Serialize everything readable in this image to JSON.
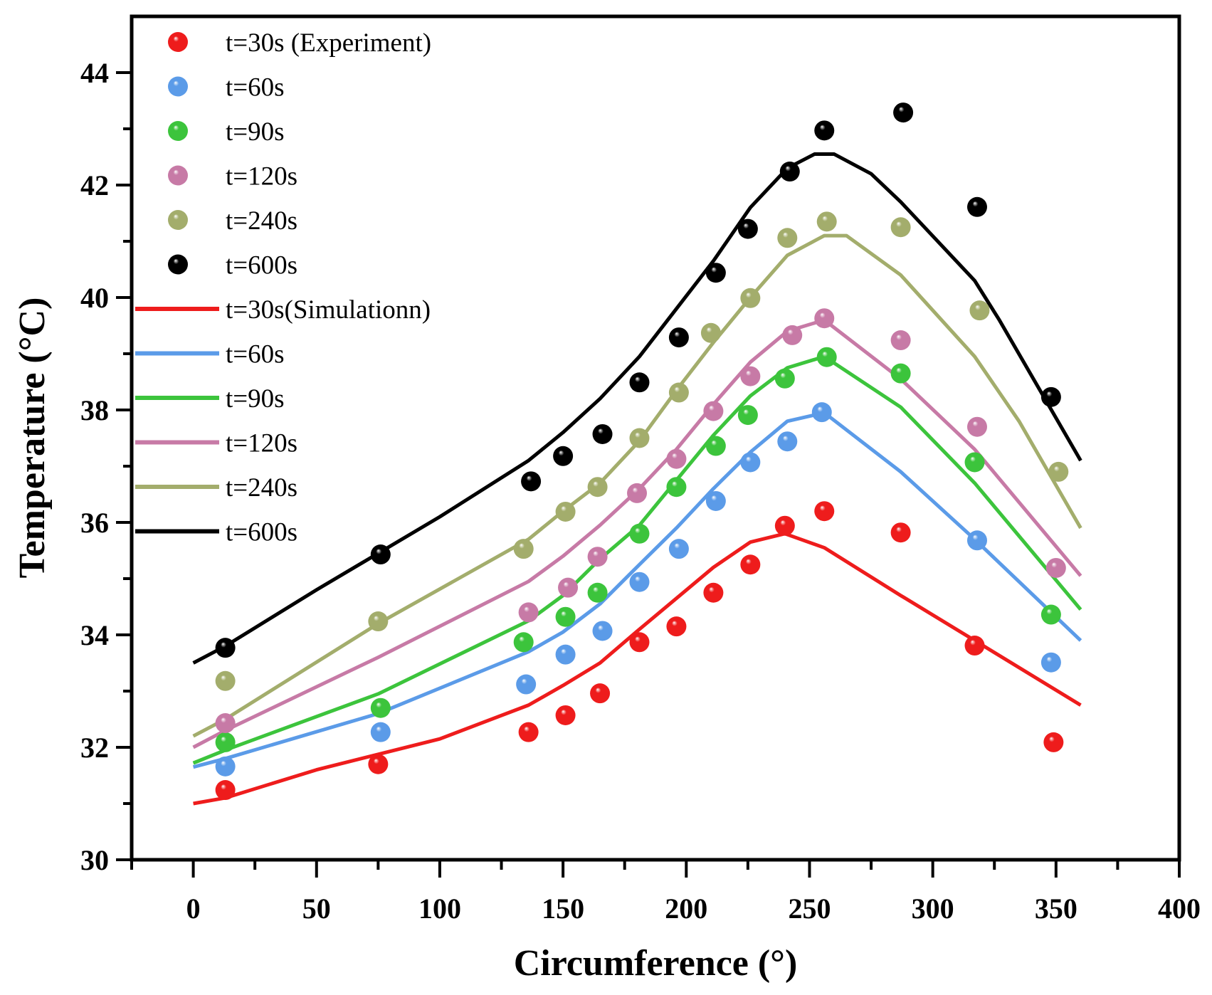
{
  "chart_data": {
    "type": "scatter",
    "title": "",
    "xlabel": "Circumference (°)",
    "ylabel": "Temperature (°C)",
    "xlim": [
      -25,
      400
    ],
    "ylim": [
      30,
      45
    ],
    "xticks": [
      0,
      50,
      100,
      150,
      200,
      250,
      300,
      350,
      400
    ],
    "yticks": [
      30,
      32,
      34,
      36,
      38,
      40,
      42,
      44
    ],
    "grid": false,
    "legend_position": "top-left",
    "experiment": [
      {
        "name": "t=30s (Experiment)",
        "color": "#ee1c1c",
        "points": [
          [
            13,
            31.24
          ],
          [
            75,
            31.7
          ],
          [
            136,
            32.27
          ],
          [
            151,
            32.57
          ],
          [
            165,
            32.96
          ],
          [
            181,
            33.87
          ],
          [
            196,
            34.15
          ],
          [
            211,
            34.75
          ],
          [
            226,
            35.25
          ],
          [
            240,
            35.94
          ],
          [
            256,
            36.2
          ],
          [
            287,
            35.82
          ],
          [
            317,
            33.81
          ],
          [
            349,
            32.09
          ]
        ]
      },
      {
        "name": "t=60s",
        "color": "#5b9be8",
        "points": [
          [
            13,
            31.66
          ],
          [
            76,
            32.27
          ],
          [
            135,
            33.12
          ],
          [
            151,
            33.65
          ],
          [
            166,
            34.07
          ],
          [
            181,
            34.94
          ],
          [
            197,
            35.53
          ],
          [
            212,
            36.38
          ],
          [
            226,
            37.07
          ],
          [
            241,
            37.44
          ],
          [
            255,
            37.96
          ],
          [
            318,
            35.68
          ],
          [
            348,
            33.51
          ]
        ]
      },
      {
        "name": "t=90s",
        "color": "#3cc43c",
        "points": [
          [
            13,
            32.09
          ],
          [
            76,
            32.7
          ],
          [
            134,
            33.87
          ],
          [
            151,
            34.32
          ],
          [
            164,
            34.75
          ],
          [
            181,
            35.8
          ],
          [
            196,
            36.63
          ],
          [
            212,
            37.36
          ],
          [
            225,
            37.91
          ],
          [
            240,
            38.56
          ],
          [
            257,
            38.94
          ],
          [
            287,
            38.65
          ],
          [
            317,
            37.07
          ],
          [
            348,
            34.36
          ]
        ]
      },
      {
        "name": "t=120s",
        "color": "#c77aa6",
        "points": [
          [
            13,
            32.43
          ],
          [
            136,
            34.4
          ],
          [
            152,
            34.84
          ],
          [
            164,
            35.39
          ],
          [
            180,
            36.52
          ],
          [
            196,
            37.13
          ],
          [
            211,
            37.98
          ],
          [
            226,
            38.6
          ],
          [
            243,
            39.33
          ],
          [
            256,
            39.63
          ],
          [
            287,
            39.24
          ],
          [
            318,
            37.7
          ],
          [
            350,
            35.19
          ]
        ]
      },
      {
        "name": "t=240s",
        "color": "#a3ad6c",
        "points": [
          [
            13,
            33.18
          ],
          [
            75,
            34.24
          ],
          [
            134,
            35.53
          ],
          [
            151,
            36.19
          ],
          [
            164,
            36.63
          ],
          [
            181,
            37.5
          ],
          [
            197,
            38.31
          ],
          [
            210,
            39.37
          ],
          [
            226,
            39.99
          ],
          [
            241,
            41.06
          ],
          [
            257,
            41.35
          ],
          [
            287,
            41.25
          ],
          [
            319,
            39.77
          ],
          [
            351,
            36.9
          ]
        ]
      },
      {
        "name": "t=600s",
        "color": "#000000",
        "points": [
          [
            13,
            33.77
          ],
          [
            76,
            35.43
          ],
          [
            137,
            36.73
          ],
          [
            150,
            37.18
          ],
          [
            166,
            37.57
          ],
          [
            181,
            38.49
          ],
          [
            197,
            39.29
          ],
          [
            212,
            40.44
          ],
          [
            225,
            41.22
          ],
          [
            242,
            42.24
          ],
          [
            256,
            42.97
          ],
          [
            288,
            43.29
          ],
          [
            318,
            41.61
          ],
          [
            348,
            38.23
          ]
        ]
      }
    ],
    "simulation": [
      {
        "name": "t=30s(Simulationn)",
        "color": "#ee1c1c",
        "points": [
          [
            0,
            31.0
          ],
          [
            13,
            31.1
          ],
          [
            50,
            31.6
          ],
          [
            100,
            32.15
          ],
          [
            136,
            32.75
          ],
          [
            150,
            33.1
          ],
          [
            165,
            33.5
          ],
          [
            181,
            34.1
          ],
          [
            196,
            34.65
          ],
          [
            211,
            35.2
          ],
          [
            226,
            35.65
          ],
          [
            240,
            35.8
          ],
          [
            256,
            35.55
          ],
          [
            287,
            34.7
          ],
          [
            317,
            33.9
          ],
          [
            360,
            32.75
          ]
        ]
      },
      {
        "name": "t=60s",
        "color": "#5b9be8",
        "points": [
          [
            0,
            31.65
          ],
          [
            13,
            31.8
          ],
          [
            75,
            32.6
          ],
          [
            136,
            33.7
          ],
          [
            150,
            34.05
          ],
          [
            165,
            34.55
          ],
          [
            181,
            35.25
          ],
          [
            196,
            35.9
          ],
          [
            211,
            36.6
          ],
          [
            226,
            37.25
          ],
          [
            241,
            37.8
          ],
          [
            256,
            37.95
          ],
          [
            287,
            36.9
          ],
          [
            317,
            35.7
          ],
          [
            360,
            33.9
          ]
        ]
      },
      {
        "name": "t=90s",
        "color": "#3cc43c",
        "points": [
          [
            0,
            31.72
          ],
          [
            13,
            31.95
          ],
          [
            75,
            32.95
          ],
          [
            136,
            34.25
          ],
          [
            150,
            34.7
          ],
          [
            165,
            35.35
          ],
          [
            181,
            35.95
          ],
          [
            196,
            36.75
          ],
          [
            211,
            37.55
          ],
          [
            226,
            38.25
          ],
          [
            241,
            38.75
          ],
          [
            256,
            38.95
          ],
          [
            287,
            38.05
          ],
          [
            317,
            36.7
          ],
          [
            360,
            34.45
          ]
        ]
      },
      {
        "name": "t=120s",
        "color": "#c77aa6",
        "points": [
          [
            0,
            32.0
          ],
          [
            13,
            32.3
          ],
          [
            75,
            33.6
          ],
          [
            136,
            34.95
          ],
          [
            150,
            35.4
          ],
          [
            165,
            35.95
          ],
          [
            181,
            36.6
          ],
          [
            196,
            37.3
          ],
          [
            211,
            38.1
          ],
          [
            226,
            38.85
          ],
          [
            241,
            39.4
          ],
          [
            256,
            39.6
          ],
          [
            287,
            38.55
          ],
          [
            317,
            37.3
          ],
          [
            360,
            35.05
          ]
        ]
      },
      {
        "name": "t=240s",
        "color": "#a3ad6c",
        "points": [
          [
            0,
            32.2
          ],
          [
            13,
            32.5
          ],
          [
            75,
            34.2
          ],
          [
            136,
            35.7
          ],
          [
            150,
            36.2
          ],
          [
            165,
            36.7
          ],
          [
            181,
            37.45
          ],
          [
            196,
            38.35
          ],
          [
            211,
            39.2
          ],
          [
            226,
            40.0
          ],
          [
            241,
            40.75
          ],
          [
            256,
            41.1
          ],
          [
            265,
            41.1
          ],
          [
            287,
            40.4
          ],
          [
            317,
            38.95
          ],
          [
            335,
            37.8
          ],
          [
            360,
            35.9
          ]
        ]
      },
      {
        "name": "t=600s",
        "color": "#000000",
        "points": [
          [
            0,
            33.5
          ],
          [
            13,
            33.8
          ],
          [
            50,
            34.8
          ],
          [
            100,
            36.1
          ],
          [
            136,
            37.1
          ],
          [
            150,
            37.6
          ],
          [
            165,
            38.2
          ],
          [
            181,
            38.95
          ],
          [
            196,
            39.8
          ],
          [
            211,
            40.65
          ],
          [
            226,
            41.6
          ],
          [
            241,
            42.3
          ],
          [
            252,
            42.55
          ],
          [
            260,
            42.55
          ],
          [
            275,
            42.2
          ],
          [
            287,
            41.7
          ],
          [
            317,
            40.3
          ],
          [
            327,
            39.6
          ],
          [
            360,
            37.1
          ]
        ]
      }
    ]
  }
}
